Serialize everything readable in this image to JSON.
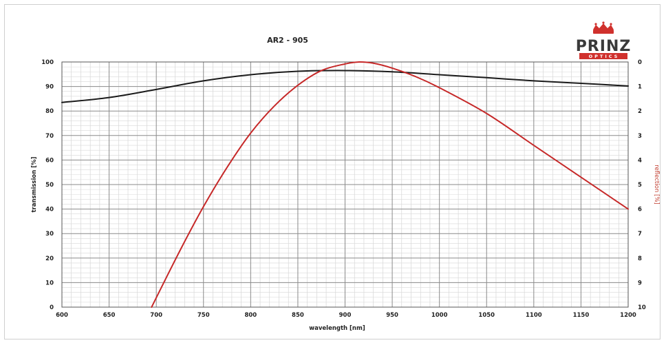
{
  "chart_data": {
    "type": "line",
    "title": "AR2 - 905",
    "xlabel": "wavelength [nm]",
    "ylabel": "transmission [%]",
    "y2label": "reflection [%]",
    "xlim": [
      600,
      1200
    ],
    "ylim": [
      0,
      100
    ],
    "y2lim": [
      0,
      10
    ],
    "y2_inverted": true,
    "x_ticks": [
      "600",
      "650",
      "700",
      "750",
      "800",
      "850",
      "900",
      "950",
      "1000",
      "1050",
      "1100",
      "1150",
      "1200"
    ],
    "y_ticks": [
      "0",
      "10",
      "20",
      "30",
      "40",
      "50",
      "60",
      "70",
      "80",
      "90",
      "100"
    ],
    "y2_ticks": [
      "0",
      "1",
      "2",
      "3",
      "4",
      "5",
      "6",
      "7",
      "8",
      "9",
      "10"
    ],
    "grid": true,
    "series": [
      {
        "color": "#1a1a1a",
        "axis": "left",
        "x": [
          600,
          650,
          700,
          750,
          800,
          850,
          900,
          950,
          1000,
          1050,
          1100,
          1150,
          1200
        ],
        "y": [
          83.5,
          85.5,
          88.8,
          92.3,
          94.8,
          96.2,
          96.5,
          96,
          94.8,
          93.6,
          92.3,
          91.3,
          90.2
        ]
      },
      {
        "color": "#c62828",
        "axis": "right",
        "x": [
          695,
          725,
          750,
          775,
          800,
          825,
          850,
          875,
          900,
          915,
          930,
          950,
          975,
          1000,
          1050,
          1100,
          1150,
          1200
        ],
        "y": [
          10,
          7.7,
          5.9,
          4.3,
          2.9,
          1.8,
          0.95,
          0.35,
          0.08,
          0,
          0.05,
          0.25,
          0.6,
          1.05,
          2.1,
          3.4,
          4.7,
          6.0
        ]
      }
    ]
  },
  "logo": {
    "word": "PRINZ",
    "band_text": "OPTICS",
    "crown_color": "#d0312d",
    "band_color": "#d0312d"
  }
}
